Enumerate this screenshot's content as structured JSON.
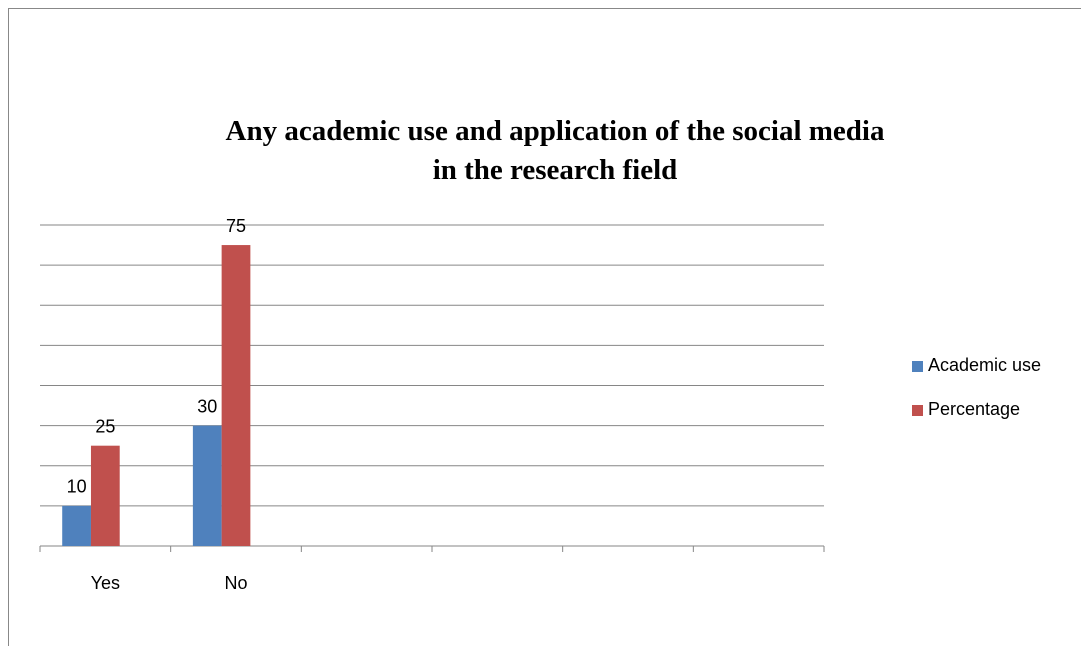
{
  "chart_data": {
    "type": "bar",
    "title": "Any academic use and application of the social media in the research field",
    "categories": [
      "Yes",
      "No",
      null,
      null,
      null,
      null
    ],
    "series": [
      {
        "name": "Academic use",
        "color": "#4f81bd",
        "values": [
          10,
          30,
          null,
          null,
          null,
          null
        ]
      },
      {
        "name": "Percentage",
        "color": "#c0504d",
        "values": [
          25,
          75,
          null,
          null,
          null,
          null
        ]
      }
    ],
    "ylim": [
      0,
      80
    ],
    "yticks": [
      0,
      10,
      20,
      30,
      40,
      50,
      60,
      70,
      80
    ],
    "grid": true,
    "legend": "right",
    "data_labels": true
  }
}
